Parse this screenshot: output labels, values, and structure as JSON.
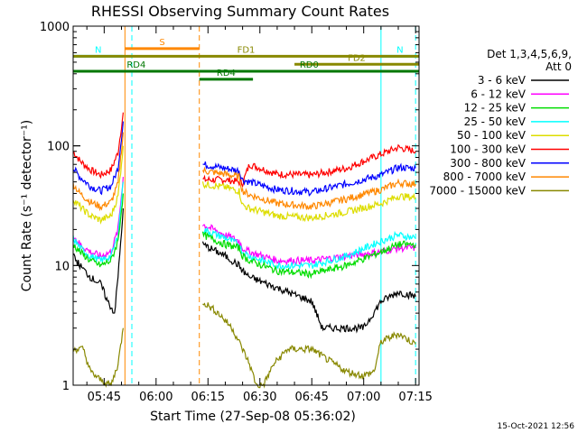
{
  "chart_data": {
    "type": "line",
    "title": "RHESSI Observing Summary Count Rates",
    "xlabel": "Start Time (27-Sep-08 05:36:02)",
    "ylabel": "Count Rate (s⁻¹ detector⁻¹)",
    "yscale": "log",
    "ylim": [
      1,
      1000
    ],
    "xlim": [
      "05:36:02",
      "07:16:00"
    ],
    "y_ticks": [
      "1",
      "10",
      "100",
      "1000"
    ],
    "x_ticks": [
      "05:45",
      "06:00",
      "06:15",
      "06:30",
      "06:45",
      "07:00",
      "07:15"
    ],
    "footer": "15-Oct-2021 12:56",
    "legend": {
      "placement": "right",
      "header": [
        "Det 1,3,4,5,6,9,",
        "Att 0"
      ],
      "entries": [
        {
          "label": "3 - 6 keV",
          "color": "#000000"
        },
        {
          "label": "6 - 12 keV",
          "color": "#ff00ff"
        },
        {
          "label": "12 - 25 keV",
          "color": "#00dd00"
        },
        {
          "label": "25 - 50 keV",
          "color": "#00ffff"
        },
        {
          "label": "50 - 100 keV",
          "color": "#dddd00"
        },
        {
          "label": "100 - 300 keV",
          "color": "#ff0000"
        },
        {
          "label": "300 - 800 keV",
          "color": "#0000ff"
        },
        {
          "label": "800 - 7000 keV",
          "color": "#ff8800"
        },
        {
          "label": "7000 - 15000 keV",
          "color": "#888800"
        }
      ]
    },
    "flags": [
      {
        "label": "S",
        "start": "05:51:00",
        "end": "06:12:30",
        "level": 650,
        "color": "#ff8800"
      },
      {
        "label": "N",
        "start": "05:36:02",
        "end": "05:50:30",
        "level": 560,
        "color": "#00ffff"
      },
      {
        "label": "N",
        "start": "07:05:00",
        "end": "07:16:00",
        "level": 560,
        "color": "#00ffff"
      },
      {
        "label": "FD1",
        "start": "05:36:02",
        "end": "07:16:00",
        "level": 560,
        "color": "#888800"
      },
      {
        "label": "FD2",
        "start": "06:40:00",
        "end": "07:16:00",
        "level": 480,
        "color": "#888800"
      },
      {
        "label": "RD0",
        "start": "06:12:30",
        "end": "07:16:00",
        "level": 420,
        "color": "#007700"
      },
      {
        "label": "RD4",
        "start": "05:36:02",
        "end": "06:12:30",
        "level": 420,
        "color": "#007700"
      },
      {
        "label": "RD4",
        "start": "06:12:30",
        "end": "06:28:00",
        "level": 360,
        "color": "#007700"
      }
    ],
    "markers": [
      {
        "time": "05:51:00",
        "style": "solid",
        "color": "#ff8800"
      },
      {
        "time": "06:12:30",
        "style": "dashed",
        "color": "#ff8800"
      },
      {
        "time": "05:36:02",
        "style": "solid",
        "color": "#00ffff"
      },
      {
        "time": "05:53:00",
        "style": "dashed",
        "color": "#00ffff"
      },
      {
        "time": "07:05:00",
        "style": "solid",
        "color": "#00ffff"
      },
      {
        "time": "07:15:00",
        "style": "dashed",
        "color": "#00ffff"
      }
    ],
    "series": [
      {
        "color": "#ff0000",
        "points": [
          [
            "05:36:02",
            90
          ],
          [
            "05:38",
            75
          ],
          [
            "05:41",
            63
          ],
          [
            "05:44",
            57
          ],
          [
            "05:47",
            63
          ],
          [
            "05:49",
            88
          ],
          [
            "05:50:30",
            190
          ],
          [
            "06:13:30",
            52
          ],
          [
            "06:20",
            52
          ],
          [
            "06:24",
            50
          ],
          [
            "06:25",
            49
          ],
          [
            "06:27",
            70
          ],
          [
            "06:35",
            58
          ],
          [
            "06:45",
            57
          ],
          [
            "06:55",
            65
          ],
          [
            "07:05",
            85
          ],
          [
            "07:10",
            97
          ],
          [
            "07:15",
            90
          ]
        ]
      },
      {
        "color": "#0000ff",
        "points": [
          [
            "05:36:02",
            65
          ],
          [
            "05:38",
            55
          ],
          [
            "05:41",
            46
          ],
          [
            "05:44",
            42
          ],
          [
            "05:47",
            46
          ],
          [
            "05:49",
            65
          ],
          [
            "05:50:30",
            160
          ],
          [
            "06:13:30",
            70
          ],
          [
            "06:20",
            65
          ],
          [
            "06:24",
            62
          ],
          [
            "06:25",
            52
          ],
          [
            "06:27",
            50
          ],
          [
            "06:35",
            43
          ],
          [
            "06:45",
            41
          ],
          [
            "06:55",
            48
          ],
          [
            "07:05",
            57
          ],
          [
            "07:10",
            66
          ],
          [
            "07:15",
            65
          ]
        ]
      },
      {
        "color": "#ff8800",
        "points": [
          [
            "05:36:02",
            48
          ],
          [
            "05:38",
            40
          ],
          [
            "05:41",
            34
          ],
          [
            "05:44",
            31
          ],
          [
            "05:47",
            34
          ],
          [
            "05:49",
            48
          ],
          [
            "05:50:30",
            130
          ],
          [
            "06:13:30",
            62
          ],
          [
            "06:20",
            58
          ],
          [
            "06:24",
            55
          ],
          [
            "06:25",
            42
          ],
          [
            "06:27",
            39
          ],
          [
            "06:35",
            33
          ],
          [
            "06:45",
            31
          ],
          [
            "06:55",
            36
          ],
          [
            "07:05",
            43
          ],
          [
            "07:10",
            49
          ],
          [
            "07:15",
            48
          ]
        ]
      },
      {
        "color": "#dddd00",
        "points": [
          [
            "05:36:02",
            36
          ],
          [
            "05:38",
            31
          ],
          [
            "05:41",
            26
          ],
          [
            "05:44",
            24
          ],
          [
            "05:47",
            26
          ],
          [
            "05:49",
            38
          ],
          [
            "05:50:30",
            100
          ],
          [
            "06:13:30",
            48
          ],
          [
            "06:20",
            45
          ],
          [
            "06:24",
            42
          ],
          [
            "06:25",
            32
          ],
          [
            "06:27",
            30
          ],
          [
            "06:35",
            26
          ],
          [
            "06:45",
            25
          ],
          [
            "06:55",
            28
          ],
          [
            "07:05",
            33
          ],
          [
            "07:10",
            38
          ],
          [
            "07:15",
            37
          ]
        ]
      },
      {
        "color": "#ff00ff",
        "points": [
          [
            "05:36:02",
            18
          ],
          [
            "05:38",
            15
          ],
          [
            "05:41",
            13
          ],
          [
            "05:44",
            12
          ],
          [
            "05:47",
            13
          ],
          [
            "05:49",
            20
          ],
          [
            "05:50:30",
            55
          ],
          [
            "06:13:30",
            22
          ],
          [
            "06:20",
            18
          ],
          [
            "06:24",
            16
          ],
          [
            "06:25",
            14
          ],
          [
            "06:27",
            13
          ],
          [
            "06:35",
            11
          ],
          [
            "06:45",
            11
          ],
          [
            "06:55",
            12
          ],
          [
            "07:05",
            13
          ],
          [
            "07:10",
            14
          ],
          [
            "07:15",
            14
          ]
        ]
      },
      {
        "color": "#00ffff",
        "points": [
          [
            "05:36:02",
            17
          ],
          [
            "05:38",
            14
          ],
          [
            "05:41",
            12
          ],
          [
            "05:44",
            11
          ],
          [
            "05:47",
            12
          ],
          [
            "05:49",
            18
          ],
          [
            "05:50:30",
            50
          ],
          [
            "06:13:30",
            20
          ],
          [
            "06:20",
            17
          ],
          [
            "06:24",
            15
          ],
          [
            "06:25",
            13
          ],
          [
            "06:27",
            12
          ],
          [
            "06:35",
            10
          ],
          [
            "06:45",
            10
          ],
          [
            "06:55",
            12
          ],
          [
            "07:05",
            16
          ],
          [
            "07:10",
            18
          ],
          [
            "07:15",
            17
          ]
        ]
      },
      {
        "color": "#00dd00",
        "points": [
          [
            "05:36:02",
            15
          ],
          [
            "05:38",
            13
          ],
          [
            "05:41",
            11
          ],
          [
            "05:44",
            10
          ],
          [
            "05:47",
            11
          ],
          [
            "05:49",
            16
          ],
          [
            "05:50:30",
            40
          ],
          [
            "06:13:30",
            18
          ],
          [
            "06:20",
            15
          ],
          [
            "06:24",
            14
          ],
          [
            "06:25",
            12
          ],
          [
            "06:27",
            11
          ],
          [
            "06:35",
            9
          ],
          [
            "06:45",
            8.5
          ],
          [
            "06:55",
            10
          ],
          [
            "07:05",
            13
          ],
          [
            "07:10",
            15
          ],
          [
            "07:15",
            15
          ]
        ]
      },
      {
        "color": "#000000",
        "points": [
          [
            "05:36:02",
            12
          ],
          [
            "05:38",
            10
          ],
          [
            "05:41",
            8
          ],
          [
            "05:44",
            7
          ],
          [
            "05:46",
            5
          ],
          [
            "05:48",
            4
          ],
          [
            "05:49",
            8
          ],
          [
            "05:50:30",
            30
          ],
          [
            "06:13:30",
            15
          ],
          [
            "06:20",
            12
          ],
          [
            "06:24",
            10
          ],
          [
            "06:25",
            9
          ],
          [
            "06:27",
            8
          ],
          [
            "06:35",
            6.5
          ],
          [
            "06:45",
            5
          ],
          [
            "06:48",
            3
          ],
          [
            "06:55",
            3
          ],
          [
            "07:00",
            3
          ],
          [
            "07:05",
            5
          ],
          [
            "07:10",
            6
          ],
          [
            "07:15",
            5.5
          ]
        ]
      },
      {
        "color": "#888800",
        "points": [
          [
            "05:36:02",
            2
          ],
          [
            "05:39",
            2
          ],
          [
            "05:41",
            1.3
          ],
          [
            "05:44",
            1.1
          ],
          [
            "05:47",
            1
          ],
          [
            "05:49",
            1.5
          ],
          [
            "05:50:30",
            3
          ],
          [
            "06:13:30",
            5
          ],
          [
            "06:18",
            4
          ],
          [
            "06:22",
            3
          ],
          [
            "06:25",
            2
          ],
          [
            "06:27",
            1.5
          ],
          [
            "06:29",
            1
          ],
          [
            "06:31",
            1
          ],
          [
            "06:34",
            1.5
          ],
          [
            "06:38",
            2
          ],
          [
            "06:45",
            2
          ],
          [
            "06:50",
            1.6
          ],
          [
            "06:55",
            1.3
          ],
          [
            "07:00",
            1.2
          ],
          [
            "07:03",
            1.3
          ],
          [
            "07:05",
            2.3
          ],
          [
            "07:10",
            2.7
          ],
          [
            "07:15",
            2.2
          ]
        ]
      }
    ]
  }
}
